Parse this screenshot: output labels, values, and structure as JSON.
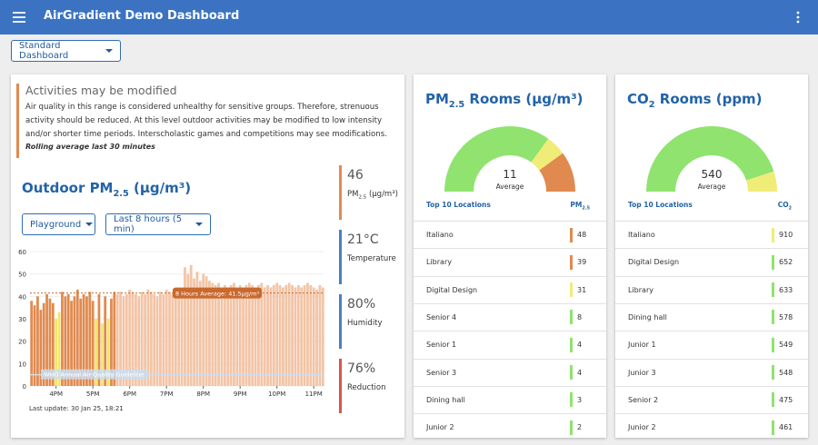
{
  "header": {
    "title": "AirGradient Demo Dashboard"
  },
  "dashboard_select": "Standard Dashboard",
  "alert": {
    "title": "Activities may be modified",
    "text": "Air quality in this range is considered unhealthy for sensitive groups. Therefore, strenuous activity should be reduced. At this level outdoor activities may be modified to low intensity and/or shorter time periods. Interscholastic games and competitions may see modifications.",
    "note": "Rolling average last 30 minutes",
    "color": "#e08a4f"
  },
  "outdoor": {
    "title_parts": [
      "Outdoor PM",
      "2.5",
      " (μg/m³)"
    ],
    "location_select": "Playground",
    "period_select": "Last 8 hours (5 min)",
    "last_update": "Last update: 30 Jan 25, 18:21"
  },
  "stats": [
    {
      "value": "46",
      "label_parts": [
        "PM",
        "2.5",
        " (μg/m³)"
      ],
      "color": "#e08a4f"
    },
    {
      "value": "21°C",
      "label_parts": [
        "Temperature"
      ],
      "color": "#4a7fc1"
    },
    {
      "value": "80%",
      "label_parts": [
        "Humidity"
      ],
      "color": "#4a7fc1"
    },
    {
      "value": "76%",
      "label_parts": [
        "Reduction"
      ],
      "color": "#d9534f"
    }
  ],
  "chart_data": [
    {
      "type": "bar",
      "ylim": [
        0,
        60
      ],
      "yticks": [
        0,
        10,
        20,
        30,
        40,
        50,
        60
      ],
      "categories": [
        null,
        null,
        null,
        null,
        null,
        null,
        null,
        null,
        "4PM",
        null,
        null,
        null,
        null,
        null,
        null,
        null,
        null,
        null,
        null,
        null,
        "5PM",
        null,
        null,
        null,
        null,
        null,
        null,
        null,
        null,
        null,
        null,
        null,
        "6PM",
        null,
        null,
        null,
        null,
        null,
        null,
        null,
        null,
        null,
        null,
        null,
        "7PM",
        null,
        null,
        null,
        null,
        null,
        null,
        null,
        null,
        null,
        null,
        null,
        "8PM",
        null,
        null,
        null,
        null,
        null,
        null,
        null,
        null,
        null,
        null,
        null,
        "9PM",
        null,
        null,
        null,
        null,
        null,
        null,
        null,
        null,
        null,
        null,
        null,
        "10PM",
        null,
        null,
        null,
        null,
        null,
        null,
        null,
        null,
        null,
        null,
        null,
        "11PM",
        null,
        null,
        null
      ],
      "values": [
        38,
        36,
        40,
        34,
        37,
        41,
        39,
        37,
        30,
        33,
        42,
        40,
        41,
        38,
        40,
        43,
        39,
        41,
        40,
        42,
        38,
        30,
        41,
        28,
        40,
        30,
        39,
        42,
        41,
        42,
        40,
        41,
        43,
        42,
        41,
        40,
        42,
        41,
        43,
        42,
        41,
        40,
        42,
        41,
        43,
        42,
        41,
        40,
        42,
        43,
        53,
        50,
        54,
        48,
        51,
        47,
        50,
        49,
        47,
        46,
        45,
        46,
        44,
        45,
        44,
        45,
        46,
        44,
        45,
        44,
        45,
        46,
        45,
        44,
        45,
        46,
        44,
        45,
        44,
        45,
        46,
        45,
        44,
        45,
        46,
        45,
        44,
        45,
        44,
        45,
        46,
        45,
        44,
        43,
        45,
        44
      ],
      "colors": [
        "#e08a4f",
        "#e08a4f",
        "#e08a4f",
        "#e08a4f",
        "#e08a4f",
        "#e08a4f",
        "#e08a4f",
        "#e08a4f",
        "#f2e56b",
        "#f2e56b",
        "#e08a4f",
        "#e08a4f",
        "#e08a4f",
        "#e08a4f",
        "#e08a4f",
        "#e08a4f",
        "#e08a4f",
        "#e08a4f",
        "#e08a4f",
        "#e08a4f",
        "#e08a4f",
        "#f2e56b",
        "#e08a4f",
        "#f2e56b",
        "#e08a4f",
        "#f2e56b",
        "#e08a4f",
        "#e08a4f",
        "#f3c4a6",
        "#f3c4a6",
        "#f3c4a6",
        "#f3c4a6",
        "#f3c4a6",
        "#f3c4a6",
        "#f3c4a6",
        "#f3c4a6",
        "#f3c4a6",
        "#f3c4a6",
        "#f3c4a6",
        "#f3c4a6",
        "#f3c4a6",
        "#f3c4a6",
        "#f3c4a6",
        "#f3c4a6",
        "#f3c4a6",
        "#f3c4a6",
        "#f3c4a6",
        "#f3c4a6",
        "#f3c4a6",
        "#f3c4a6",
        "#f3c4a6",
        "#f3c4a6",
        "#f3c4a6",
        "#f3c4a6",
        "#f3c4a6",
        "#f3c4a6",
        "#f3c4a6",
        "#f3c4a6",
        "#f3c4a6",
        "#f3c4a6",
        "#f3c4a6",
        "#f3c4a6",
        "#f3c4a6",
        "#f3c4a6",
        "#f3c4a6",
        "#f3c4a6",
        "#f3c4a6",
        "#f3c4a6",
        "#f3c4a6",
        "#f3c4a6",
        "#f3c4a6",
        "#f3c4a6",
        "#f3c4a6",
        "#f3c4a6",
        "#f3c4a6",
        "#f3c4a6",
        "#f3c4a6",
        "#f3c4a6",
        "#f3c4a6",
        "#f3c4a6",
        "#f3c4a6",
        "#f3c4a6",
        "#f3c4a6",
        "#f3c4a6",
        "#f3c4a6",
        "#f3c4a6",
        "#f3c4a6",
        "#f3c4a6",
        "#f3c4a6",
        "#f3c4a6",
        "#f3c4a6",
        "#f3c4a6",
        "#f3c4a6",
        "#f3c4a6",
        "#f3c4a6",
        "#f3c4a6"
      ],
      "annotations": [
        {
          "label": "8 Hours Average: 41.5μg/m³",
          "value": 41.5,
          "color": "#c9692e"
        },
        {
          "label": "WHO Annual Air Quality Guideline",
          "value": 5,
          "color": "#c9dff2"
        }
      ]
    },
    {
      "type": "gauge",
      "title_parts": [
        "PM",
        "2.5",
        " Rooms (μg/m³)"
      ],
      "center_value": 11,
      "center_label": "Average",
      "segments": [
        {
          "value": 7,
          "color": "#8fe36e"
        },
        {
          "value": 1,
          "color": "#f0ec78"
        },
        {
          "value": 2,
          "color": "#e08a4f"
        }
      ]
    },
    {
      "type": "gauge",
      "title_parts": [
        "CO",
        "2",
        " Rooms (ppm)"
      ],
      "center_value": 540,
      "center_label": "Average",
      "segments": [
        {
          "value": 9,
          "color": "#8fe36e"
        },
        {
          "value": 1,
          "color": "#f0ec78"
        }
      ]
    }
  ],
  "rooms": [
    {
      "header": "Top 10 Locations",
      "unit_parts": [
        "PM",
        "2.5"
      ],
      "rows": [
        {
          "name": "Italiano",
          "value": 48,
          "color": "#e08a4f"
        },
        {
          "name": "Library",
          "value": 39,
          "color": "#e08a4f"
        },
        {
          "name": "Digital Design",
          "value": 31,
          "color": "#f0ec78"
        },
        {
          "name": "Senior 4",
          "value": 8,
          "color": "#8fe36e"
        },
        {
          "name": "Senior 1",
          "value": 4,
          "color": "#8fe36e"
        },
        {
          "name": "Senior 3",
          "value": 4,
          "color": "#8fe36e"
        },
        {
          "name": "Dining hall",
          "value": 3,
          "color": "#8fe36e"
        },
        {
          "name": "Junior 2",
          "value": 2,
          "color": "#8fe36e"
        }
      ]
    },
    {
      "header": "Top 10 Locations",
      "unit_parts": [
        "CO",
        "2"
      ],
      "rows": [
        {
          "name": "Italiano",
          "value": 910,
          "color": "#f0ec78"
        },
        {
          "name": "Digital Design",
          "value": 652,
          "color": "#8fe36e"
        },
        {
          "name": "Library",
          "value": 633,
          "color": "#8fe36e"
        },
        {
          "name": "Dining hall",
          "value": 578,
          "color": "#8fe36e"
        },
        {
          "name": "Junior 1",
          "value": 549,
          "color": "#8fe36e"
        },
        {
          "name": "Junior 3",
          "value": 548,
          "color": "#8fe36e"
        },
        {
          "name": "Senior 2",
          "value": 475,
          "color": "#8fe36e"
        },
        {
          "name": "Junior 2",
          "value": 461,
          "color": "#8fe36e"
        }
      ]
    }
  ]
}
